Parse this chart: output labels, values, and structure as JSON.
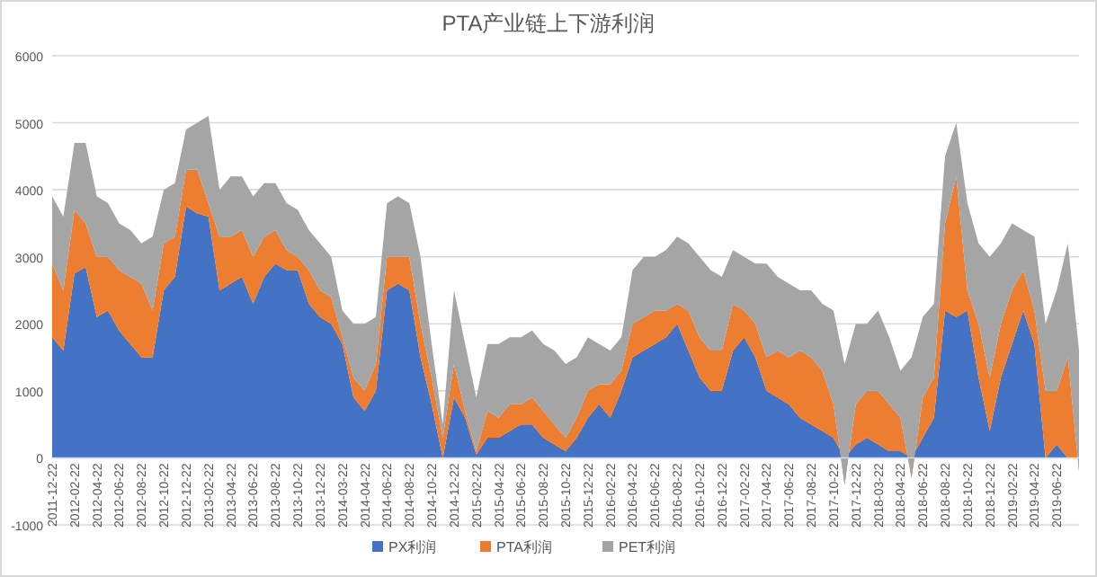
{
  "chart_data": {
    "type": "area",
    "stacked": true,
    "title": "PTA产业链上下游利润",
    "categories": [
      "2011-12-22",
      null,
      "2012-02-22",
      null,
      "2012-04-22",
      null,
      "2012-06-22",
      null,
      "2012-08-22",
      null,
      "2012-10-22",
      null,
      "2012-12-22",
      null,
      "2013-02-22",
      null,
      "2013-04-22",
      null,
      "2013-06-22",
      null,
      "2013-08-22",
      null,
      "2013-10-22",
      null,
      "2013-12-22",
      null,
      "2014-03-22",
      null,
      "2014-04-22",
      null,
      "2014-06-22",
      null,
      "2014-08-22",
      null,
      "2014-10-22",
      null,
      "2014-12-22",
      null,
      "2015-02-22",
      null,
      "2015-04-22",
      null,
      "2015-06-22",
      null,
      "2015-08-22",
      null,
      "2015-10-22",
      null,
      "2015-12-22",
      null,
      "2016-02-22",
      null,
      "2016-04-22",
      null,
      "2016-06-22",
      null,
      "2016-08-22",
      null,
      "2016-10-22",
      null,
      "2016-12-22",
      null,
      "2017-02-22",
      null,
      "2017-04-22",
      null,
      "2017-06-22",
      null,
      "2017-08-22",
      null,
      "2017-10-22",
      null,
      "2017-12-22",
      null,
      "2018-03-22",
      null,
      "2018-04-22",
      null,
      "2018-06-22",
      null,
      "2018-08-22",
      null,
      "2018-10-22",
      null,
      "2018-12-22",
      null,
      "2019-02-22",
      null,
      "2019-04-22",
      null,
      "2019-06-22",
      null,
      null
    ],
    "series": [
      {
        "name": "PX利润",
        "color": "#4472c4",
        "values": [
          1800,
          1600,
          2750,
          2850,
          2100,
          2200,
          1900,
          1700,
          1500,
          1500,
          2500,
          2700,
          3750,
          3650,
          3600,
          2500,
          2600,
          2700,
          2300,
          2700,
          2900,
          2800,
          2800,
          2300,
          2100,
          2000,
          1700,
          900,
          700,
          1000,
          2500,
          2600,
          2500,
          1500,
          800,
          0,
          900,
          600,
          50,
          300,
          300,
          400,
          500,
          500,
          300,
          200,
          100,
          300,
          600,
          800,
          600,
          1000,
          1500,
          1600,
          1700,
          1800,
          2000,
          1600,
          1200,
          1000,
          1000,
          1600,
          1800,
          1500,
          1000,
          900,
          800,
          600,
          500,
          400,
          300,
          0,
          200,
          300,
          200,
          100,
          100,
          0,
          300,
          600,
          2200,
          2100,
          2200,
          1200,
          400,
          1200,
          1700,
          2200,
          1700,
          0,
          200,
          0,
          0
        ]
      },
      {
        "name": "PTA利润",
        "color": "#ed7d31",
        "values": [
          1100,
          900,
          950,
          650,
          900,
          800,
          900,
          1000,
          1100,
          700,
          700,
          600,
          550,
          650,
          200,
          800,
          700,
          700,
          700,
          600,
          500,
          300,
          200,
          500,
          400,
          400,
          100,
          300,
          300,
          400,
          500,
          400,
          500,
          500,
          400,
          300,
          500,
          100,
          50,
          400,
          300,
          400,
          300,
          400,
          400,
          300,
          200,
          300,
          400,
          300,
          500,
          300,
          500,
          500,
          500,
          400,
          300,
          600,
          600,
          600,
          600,
          700,
          400,
          500,
          500,
          700,
          700,
          1000,
          1000,
          900,
          500,
          -400,
          600,
          700,
          800,
          700,
          500,
          -300,
          600,
          600,
          1300,
          2100,
          300,
          800,
          800,
          800,
          800,
          600,
          500,
          1000,
          800,
          1500,
          -200
        ]
      },
      {
        "name": "PET利润",
        "color": "#a5a5a5",
        "values": [
          1000,
          1100,
          1000,
          1200,
          900,
          800,
          700,
          700,
          600,
          1100,
          800,
          800,
          600,
          700,
          1300,
          700,
          900,
          800,
          900,
          800,
          700,
          700,
          700,
          600,
          700,
          600,
          400,
          800,
          1000,
          700,
          800,
          900,
          800,
          1000,
          500,
          200,
          1100,
          1000,
          800,
          1000,
          1100,
          1000,
          1000,
          1000,
          1000,
          1100,
          1100,
          900,
          800,
          600,
          500,
          500,
          800,
          900,
          800,
          900,
          1000,
          1000,
          1200,
          1200,
          1100,
          800,
          800,
          900,
          1400,
          1100,
          1100,
          900,
          1000,
          1000,
          1400,
          1800,
          1200,
          1000,
          1200,
          1000,
          700,
          1800,
          1200,
          1100,
          1000,
          800,
          1300,
          1200,
          1800,
          1200,
          1000,
          600,
          1100,
          1000,
          1500,
          1700,
          1800
        ]
      }
    ],
    "ylim": [
      -1000,
      6000
    ],
    "yticks": [
      -1000,
      0,
      1000,
      2000,
      3000,
      4000,
      5000,
      6000
    ],
    "grid": "y",
    "legend": "bottom"
  }
}
